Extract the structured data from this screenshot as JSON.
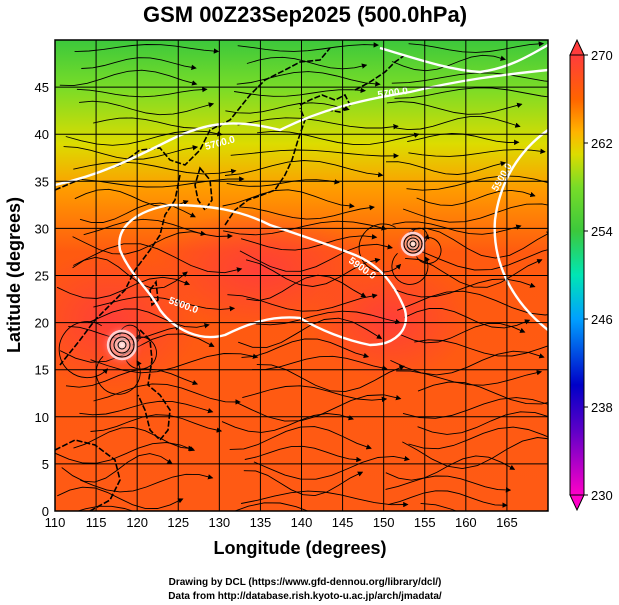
{
  "map": {
    "title": "GSM 00Z23Sep2025 (500.0hPa)",
    "projection": "equirectangular lat-lon",
    "region": {
      "lon_range": [
        110,
        170
      ],
      "lat_range": [
        0,
        50
      ]
    },
    "level_hPa": 500.0,
    "field": "temperature (K) shaded with wind streamlines",
    "x_axis": {
      "label": "Longitude (degrees)",
      "ticks": [
        "110",
        "115",
        "120",
        "125",
        "130",
        "135",
        "140",
        "145",
        "150",
        "155",
        "160",
        "165"
      ],
      "tick_values": [
        110,
        115,
        120,
        125,
        130,
        135,
        140,
        145,
        150,
        155,
        160,
        165
      ]
    },
    "y_axis": {
      "label": "Latitude  (degrees)",
      "ticks": [
        "0",
        "5",
        "10",
        "15",
        "20",
        "25",
        "30",
        "35",
        "40",
        "45"
      ],
      "tick_values": [
        0,
        5,
        10,
        15,
        20,
        25,
        30,
        35,
        40,
        45
      ]
    },
    "colorbar": {
      "ticks": [
        "270",
        "262",
        "254",
        "246",
        "238",
        "230"
      ],
      "tick_values": [
        270,
        262,
        254,
        246,
        238,
        230
      ],
      "range": [
        230,
        270
      ],
      "stops": [
        {
          "value": 230,
          "color": "#ff00c8"
        },
        {
          "value": 236,
          "color": "#5a00c8"
        },
        {
          "value": 240,
          "color": "#0000c8"
        },
        {
          "value": 246,
          "color": "#00a0ff"
        },
        {
          "value": 250,
          "color": "#00e6b4"
        },
        {
          "value": 254,
          "color": "#3cc83c"
        },
        {
          "value": 258,
          "color": "#78dc28"
        },
        {
          "value": 261,
          "color": "#dcdc00"
        },
        {
          "value": 263,
          "color": "#ffb400"
        },
        {
          "value": 266,
          "color": "#ff6400"
        },
        {
          "value": 270,
          "color": "#ff3c3c"
        }
      ]
    },
    "contour_labels": [
      "5700.0",
      "5700.0",
      "5900.0",
      "5900.0",
      "5900.0"
    ],
    "credits": [
      "Drawing by DCL (https://www.gfd-dennou.org/library/dcl/)",
      "Data from http://database.rish.kyoto-u.ac.jp/arch/jmadata/"
    ],
    "colors": {
      "coast": "#000000",
      "contour": "#ffffff",
      "streamline": "#000000"
    }
  }
}
